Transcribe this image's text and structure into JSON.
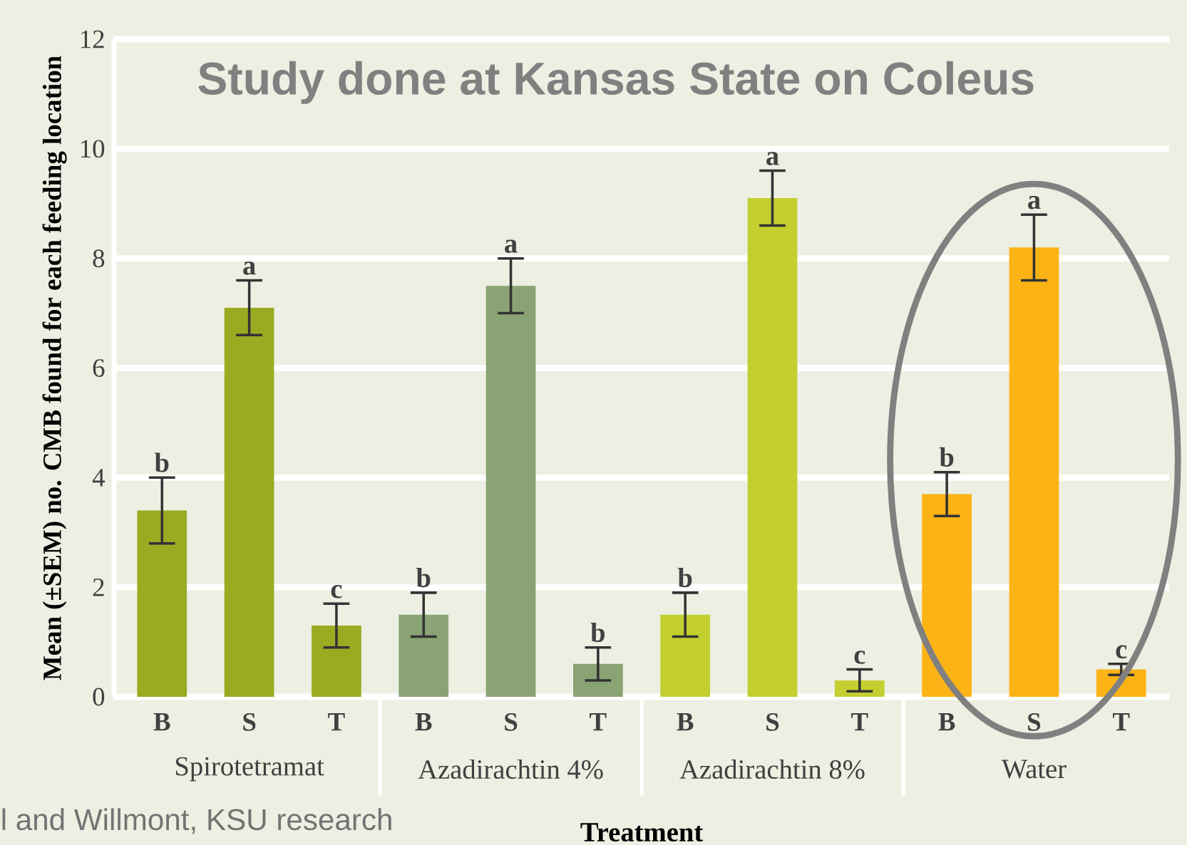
{
  "chart_data": {
    "type": "bar",
    "title": "Study done at Kansas State on Coleus",
    "xlabel": "Treatment",
    "ylabel": "Mean (±SEM) no. CMB found for each feeding location",
    "categories": [
      "B",
      "S",
      "T",
      "B",
      "S",
      "T",
      "B",
      "S",
      "T",
      "B",
      "S",
      "T"
    ],
    "values": [
      3.4,
      7.1,
      1.3,
      1.5,
      7.5,
      0.6,
      1.5,
      9.1,
      0.3,
      3.7,
      8.2,
      0.5
    ],
    "errors": [
      0.6,
      0.5,
      0.4,
      0.4,
      0.5,
      0.3,
      0.4,
      0.5,
      0.2,
      0.4,
      0.6,
      0.1
    ],
    "value_labels": [
      "b",
      "a",
      "c",
      "b",
      "a",
      "b",
      "b",
      "a",
      "c",
      "b",
      "a",
      "c"
    ],
    "colors": [
      "#9aab22",
      "#9aab22",
      "#9aab22",
      "#8aa374",
      "#8aa374",
      "#8aa374",
      "#c3cf2e",
      "#c3cf2e",
      "#c3cf2e",
      "#fbb316",
      "#fbb316",
      "#fbb316"
    ],
    "ylim": [
      0,
      12
    ],
    "yticks": [
      0,
      2,
      4,
      6,
      8,
      10,
      12
    ],
    "grid": "y",
    "annotations": [
      "Spirotetramat",
      "Azadirachtin 4%",
      "Azadirachtin 8%",
      "Water",
      "l and Willmont, KSU research"
    ]
  }
}
